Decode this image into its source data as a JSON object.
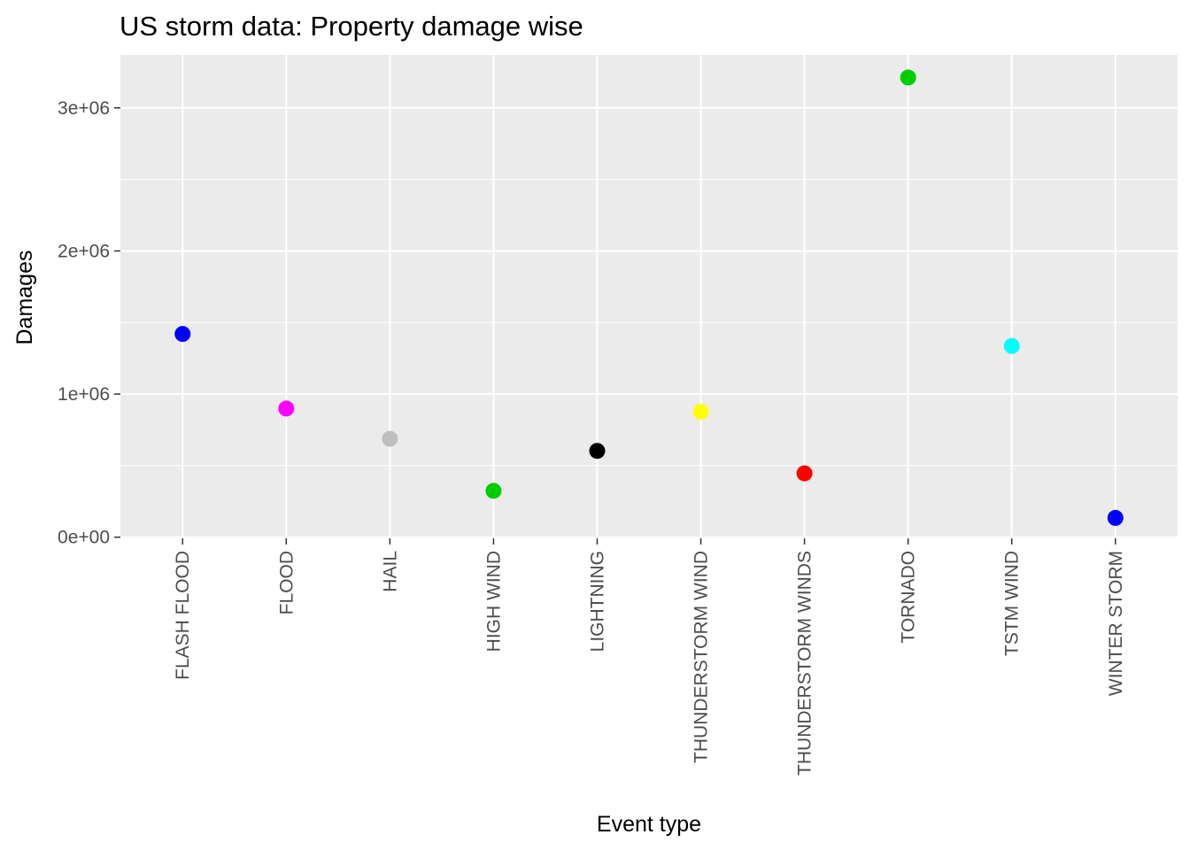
{
  "chart_data": {
    "type": "scatter",
    "title": "US storm data: Property damage wise",
    "xlabel": "Event type",
    "ylabel": "Damages",
    "categories": [
      "FLASH FLOOD",
      "FLOOD",
      "HAIL",
      "HIGH WIND",
      "LIGHTNING",
      "THUNDERSTORM WIND",
      "THUNDERSTORM WINDS",
      "TORNADO",
      "TSTM WIND",
      "WINTER STORM"
    ],
    "values": [
      1420000,
      899000,
      688000,
      324000,
      603000,
      877000,
      446000,
      3212000,
      1336000,
      135000
    ],
    "colors": [
      "#0000ff",
      "#ff00ff",
      "#bebebe",
      "#00cd00",
      "#000000",
      "#ffff00",
      "#ff0000",
      "#00cd00",
      "#00ffff",
      "#0000ff"
    ],
    "yticks": [
      0,
      1000000,
      2000000,
      3000000
    ],
    "ytick_labels": [
      "0e+00",
      "1e+06",
      "2e+06",
      "3e+06"
    ],
    "ylim": [
      -8000,
      3370000
    ],
    "background": "#ebebeb",
    "grid": true
  }
}
